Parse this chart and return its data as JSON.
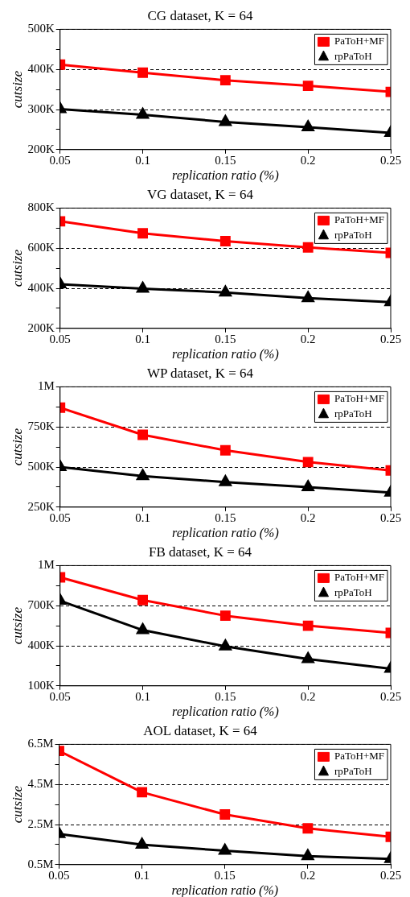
{
  "chart_data": [
    {
      "type": "line",
      "title": "CG dataset, K = 64",
      "xlabel": "replication ratio (%)",
      "ylabel": "cutsize",
      "x": [
        0.05,
        0.1,
        0.15,
        0.2,
        0.25
      ],
      "xlim": [
        0.05,
        0.25
      ],
      "xticks": [
        0.05,
        0.1,
        0.15,
        0.2,
        0.25
      ],
      "ylim": [
        200000,
        500000
      ],
      "yticks": [
        {
          "value": 200000,
          "label": "200K"
        },
        {
          "value": 250000,
          "label": null
        },
        {
          "value": 300000,
          "label": "300K"
        },
        {
          "value": 350000,
          "label": null
        },
        {
          "value": 400000,
          "label": "400K"
        },
        {
          "value": 450000,
          "label": null
        },
        {
          "value": 500000,
          "label": "500K"
        }
      ],
      "grid": "y",
      "legend": "top right",
      "series": [
        {
          "name": "PaToH+MF",
          "color": "#ff0000",
          "marker": "square",
          "values": [
            412000,
            392000,
            373000,
            359000,
            344000
          ]
        },
        {
          "name": "rpPaToH",
          "color": "#000000",
          "marker": "triangle",
          "values": [
            301000,
            287000,
            269000,
            256000,
            242000
          ]
        }
      ]
    },
    {
      "type": "line",
      "title": "VG dataset, K = 64",
      "xlabel": "replication ratio (%)",
      "ylabel": "cutsize",
      "x": [
        0.05,
        0.1,
        0.15,
        0.2,
        0.25
      ],
      "xlim": [
        0.05,
        0.25
      ],
      "xticks": [
        0.05,
        0.1,
        0.15,
        0.2,
        0.25
      ],
      "ylim": [
        200000,
        800000
      ],
      "yticks": [
        {
          "value": 200000,
          "label": "200K"
        },
        {
          "value": 300000,
          "label": null
        },
        {
          "value": 400000,
          "label": "400K"
        },
        {
          "value": 500000,
          "label": null
        },
        {
          "value": 600000,
          "label": "600K"
        },
        {
          "value": 700000,
          "label": null
        },
        {
          "value": 800000,
          "label": "800K"
        }
      ],
      "grid": "y",
      "legend": "top right",
      "series": [
        {
          "name": "PaToH+MF",
          "color": "#ff0000",
          "marker": "square",
          "values": [
            734000,
            674000,
            635000,
            604000,
            577000
          ]
        },
        {
          "name": "rpPaToH",
          "color": "#000000",
          "marker": "triangle",
          "values": [
            420000,
            398000,
            379000,
            351000,
            331000
          ]
        }
      ]
    },
    {
      "type": "line",
      "title": "WP dataset, K = 64",
      "xlabel": "replication ratio (%)",
      "ylabel": "cutsize",
      "x": [
        0.05,
        0.1,
        0.15,
        0.2,
        0.25
      ],
      "xlim": [
        0.05,
        0.25
      ],
      "xticks": [
        0.05,
        0.1,
        0.15,
        0.2,
        0.25
      ],
      "ylim": [
        250000,
        1000000
      ],
      "yticks": [
        {
          "value": 250000,
          "label": "250K"
        },
        {
          "value": 375000,
          "label": null
        },
        {
          "value": 500000,
          "label": "500K"
        },
        {
          "value": 625000,
          "label": null
        },
        {
          "value": 750000,
          "label": "750K"
        },
        {
          "value": 875000,
          "label": null
        },
        {
          "value": 1000000,
          "label": "1M"
        }
      ],
      "grid": "y",
      "legend": "top right",
      "series": [
        {
          "name": "PaToH+MF",
          "color": "#ff0000",
          "marker": "square",
          "values": [
            870000,
            701000,
            604000,
            531000,
            479000
          ]
        },
        {
          "name": "rpPaToH",
          "color": "#000000",
          "marker": "triangle",
          "values": [
            500000,
            444000,
            406000,
            375000,
            340000
          ]
        }
      ]
    },
    {
      "type": "line",
      "title": "FB dataset, K = 64",
      "xlabel": "replication ratio (%)",
      "ylabel": "cutsize",
      "x": [
        0.05,
        0.1,
        0.15,
        0.2,
        0.25
      ],
      "xlim": [
        0.05,
        0.25
      ],
      "xticks": [
        0.05,
        0.1,
        0.15,
        0.2,
        0.25
      ],
      "ylim": [
        100000,
        1000000
      ],
      "yticks": [
        {
          "value": 100000,
          "label": "100K"
        },
        {
          "value": 250000,
          "label": null
        },
        {
          "value": 400000,
          "label": "400K"
        },
        {
          "value": 550000,
          "label": null
        },
        {
          "value": 700000,
          "label": "700K"
        },
        {
          "value": 850000,
          "label": null
        },
        {
          "value": 1000000,
          "label": "1M"
        }
      ],
      "grid": "y",
      "legend": "top right",
      "series": [
        {
          "name": "PaToH+MF",
          "color": "#ff0000",
          "marker": "square",
          "values": [
            912000,
            742000,
            625000,
            550000,
            496000
          ]
        },
        {
          "name": "rpPaToH",
          "color": "#000000",
          "marker": "triangle",
          "values": [
            737000,
            517000,
            396000,
            300000,
            229000
          ]
        }
      ]
    },
    {
      "type": "line",
      "title": "AOL dataset, K = 64",
      "xlabel": "replication ratio (%)",
      "ylabel": "cutsize",
      "x": [
        0.05,
        0.1,
        0.15,
        0.2,
        0.25
      ],
      "xlim": [
        0.05,
        0.25
      ],
      "xticks": [
        0.05,
        0.1,
        0.15,
        0.2,
        0.25
      ],
      "ylim": [
        500000,
        6500000
      ],
      "yticks": [
        {
          "value": 500000,
          "label": "0.5M"
        },
        {
          "value": 1500000,
          "label": null
        },
        {
          "value": 2500000,
          "label": "2.5M"
        },
        {
          "value": 3500000,
          "label": null
        },
        {
          "value": 4500000,
          "label": "4.5M"
        },
        {
          "value": 5500000,
          "label": null
        },
        {
          "value": 6500000,
          "label": "6.5M"
        }
      ],
      "grid": "y",
      "legend": "top right",
      "series": [
        {
          "name": "PaToH+MF",
          "color": "#ff0000",
          "marker": "square",
          "values": [
            6170000,
            4110000,
            3000000,
            2310000,
            1890000
          ]
        },
        {
          "name": "rpPaToH",
          "color": "#000000",
          "marker": "triangle",
          "values": [
            2030000,
            1500000,
            1190000,
            920000,
            780000
          ]
        }
      ]
    }
  ]
}
